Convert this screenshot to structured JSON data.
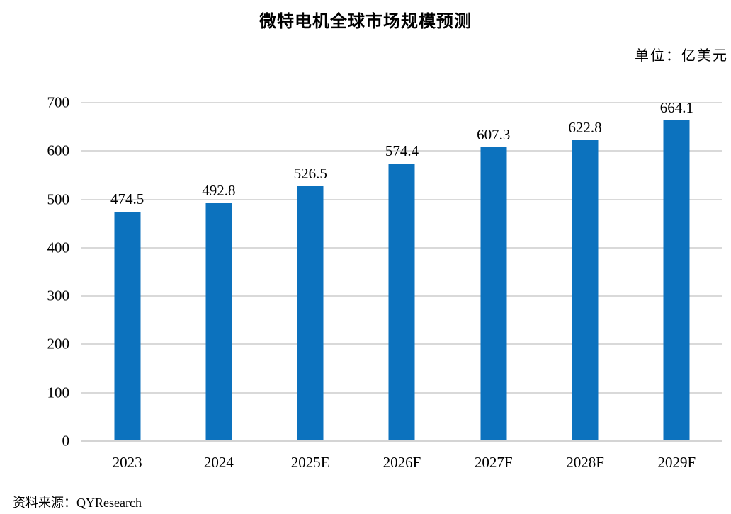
{
  "header": {
    "title": "微特电机全球市场规模预测",
    "unit_label": "单位：亿美元"
  },
  "footer": {
    "source": "资料来源：QYResearch"
  },
  "chart_data": {
    "type": "bar",
    "title": "微特电机全球市场规模预测",
    "unit": "亿美元",
    "categories": [
      "2023",
      "2024",
      "2025E",
      "2026F",
      "2027F",
      "2028F",
      "2029F"
    ],
    "values": [
      474.5,
      492.8,
      526.5,
      574.4,
      607.3,
      622.8,
      664.1
    ],
    "xlabel": "",
    "ylabel": "",
    "ylim": [
      0,
      700
    ],
    "yticks": [
      0,
      100,
      200,
      300,
      400,
      500,
      600,
      700
    ],
    "grid": true,
    "legend_position": "none",
    "data_labels": true,
    "bar_color": "#0c72be",
    "gridline_color": "#d9d9d9",
    "source": "QYResearch"
  }
}
